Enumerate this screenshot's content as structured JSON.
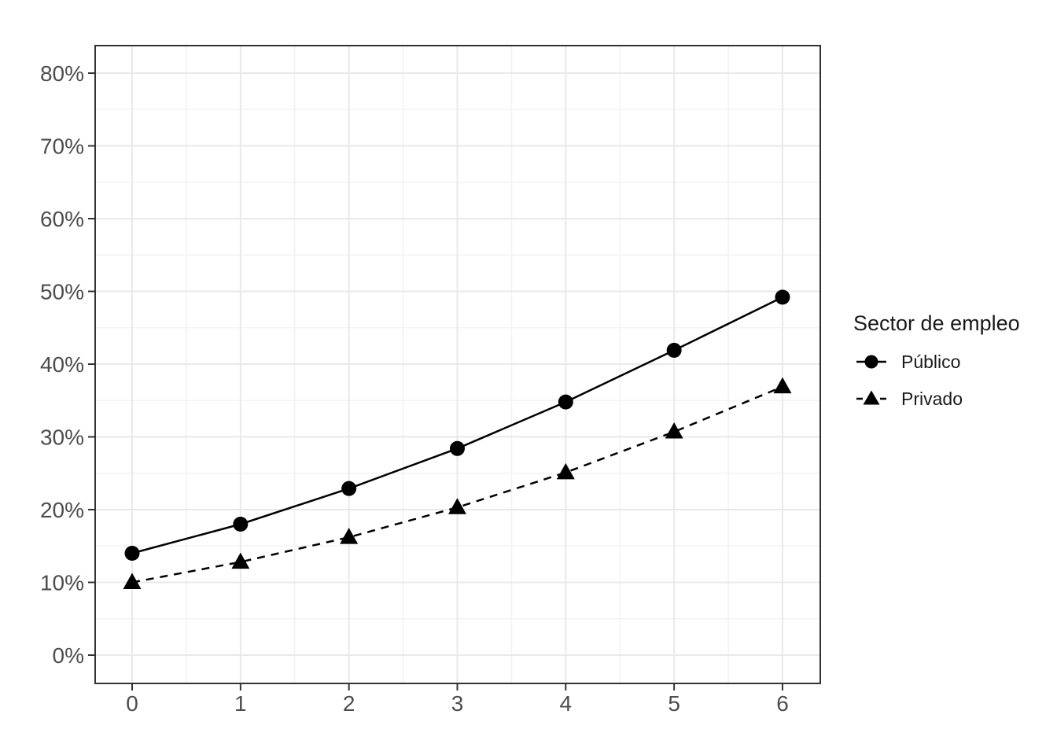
{
  "chart_data": {
    "type": "line",
    "title": "",
    "xlabel": "",
    "ylabel": "",
    "x": [
      0,
      1,
      2,
      3,
      4,
      5,
      6
    ],
    "series": [
      {
        "name": "Público",
        "marker": "circle",
        "line_style": "solid",
        "color": "#000000",
        "values_pct": [
          14.0,
          18.0,
          22.9,
          28.4,
          34.8,
          41.9,
          49.2
        ]
      },
      {
        "name": "Privado",
        "marker": "triangle",
        "line_style": "dashed",
        "color": "#000000",
        "values_pct": [
          10.0,
          12.8,
          16.2,
          20.3,
          25.1,
          30.7,
          36.9
        ]
      }
    ],
    "legend": {
      "title": "Sector de empleo",
      "position": "right"
    },
    "x_axis": {
      "tick_values": [
        0,
        1,
        2,
        3,
        4,
        5,
        6
      ],
      "tick_labels": [
        "0",
        "1",
        "2",
        "3",
        "4",
        "5",
        "6"
      ],
      "range": [
        0,
        6
      ]
    },
    "y_axis": {
      "tick_values_pct": [
        0,
        10,
        20,
        30,
        40,
        50,
        60,
        70,
        80
      ],
      "tick_labels": [
        "0%",
        "10%",
        "20%",
        "30%",
        "40%",
        "50%",
        "60%",
        "70%",
        "80%"
      ],
      "minor_tick_values_pct": [
        5,
        15,
        25,
        35,
        45,
        55,
        65,
        75
      ],
      "range_pct": [
        0,
        80
      ]
    },
    "grid": {
      "major": true,
      "minor": true
    },
    "colors": {
      "background": "#ffffff",
      "panel_border": "#333333",
      "grid_major": "#e9e9e9",
      "grid_minor": "#f3f3f3",
      "axis_text": "#4d4d4d",
      "tick_mark": "#333333",
      "series": "#000000"
    }
  }
}
